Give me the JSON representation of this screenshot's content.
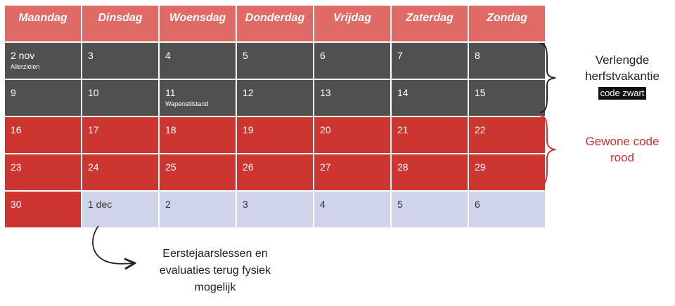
{
  "days": [
    "Maandag",
    "Dinsdag",
    "Woensdag",
    "Donderdag",
    "Vrijdag",
    "Zaterdag",
    "Zondag"
  ],
  "weeks": [
    [
      {
        "date": "2 nov",
        "note": "Allerzielen",
        "type": "dark"
      },
      {
        "date": "3",
        "note": "",
        "type": "dark"
      },
      {
        "date": "4",
        "note": "",
        "type": "dark"
      },
      {
        "date": "5",
        "note": "",
        "type": "dark"
      },
      {
        "date": "6",
        "note": "",
        "type": "dark"
      },
      {
        "date": "7",
        "note": "",
        "type": "dark"
      },
      {
        "date": "8",
        "note": "",
        "type": "dark"
      }
    ],
    [
      {
        "date": "9",
        "note": "",
        "type": "dark"
      },
      {
        "date": "10",
        "note": "",
        "type": "dark"
      },
      {
        "date": "11",
        "note": "Wapenstilstand",
        "type": "dark"
      },
      {
        "date": "12",
        "note": "",
        "type": "dark"
      },
      {
        "date": "13",
        "note": "",
        "type": "dark"
      },
      {
        "date": "14",
        "note": "",
        "type": "dark"
      },
      {
        "date": "15",
        "note": "",
        "type": "dark"
      }
    ],
    [
      {
        "date": "16",
        "note": "",
        "type": "red"
      },
      {
        "date": "17",
        "note": "",
        "type": "red"
      },
      {
        "date": "18",
        "note": "",
        "type": "red"
      },
      {
        "date": "19",
        "note": "",
        "type": "red"
      },
      {
        "date": "20",
        "note": "",
        "type": "red"
      },
      {
        "date": "21",
        "note": "",
        "type": "red"
      },
      {
        "date": "22",
        "note": "",
        "type": "red"
      }
    ],
    [
      {
        "date": "23",
        "note": "",
        "type": "red"
      },
      {
        "date": "24",
        "note": "",
        "type": "red"
      },
      {
        "date": "25",
        "note": "",
        "type": "red"
      },
      {
        "date": "26",
        "note": "",
        "type": "red"
      },
      {
        "date": "27",
        "note": "",
        "type": "red"
      },
      {
        "date": "28",
        "note": "",
        "type": "red"
      },
      {
        "date": "29",
        "note": "",
        "type": "red"
      }
    ],
    [
      {
        "date": "30",
        "note": "",
        "type": "red"
      },
      {
        "date": "1 dec",
        "note": "",
        "type": "light"
      },
      {
        "date": "2",
        "note": "",
        "type": "light"
      },
      {
        "date": "3",
        "note": "",
        "type": "light"
      },
      {
        "date": "4",
        "note": "",
        "type": "light"
      },
      {
        "date": "5",
        "note": "",
        "type": "light"
      },
      {
        "date": "6",
        "note": "",
        "type": "light"
      }
    ]
  ],
  "labels": {
    "dark_line1": "Verlengde",
    "dark_line2": "herfstvakantie",
    "dark_box": "code zwart",
    "red_line1": "Gewone code",
    "red_line2": "rood",
    "note_line1": "Eerstejaarslessen en",
    "note_line2": "evaluaties terug fysiek",
    "note_line3": "mogelijk"
  },
  "colors": {
    "header": "#e06a66",
    "code_zwart": "#505050",
    "code_rood": "#cc3530",
    "fysiek": "#cfd4ea",
    "red_label": "#d2312b"
  }
}
